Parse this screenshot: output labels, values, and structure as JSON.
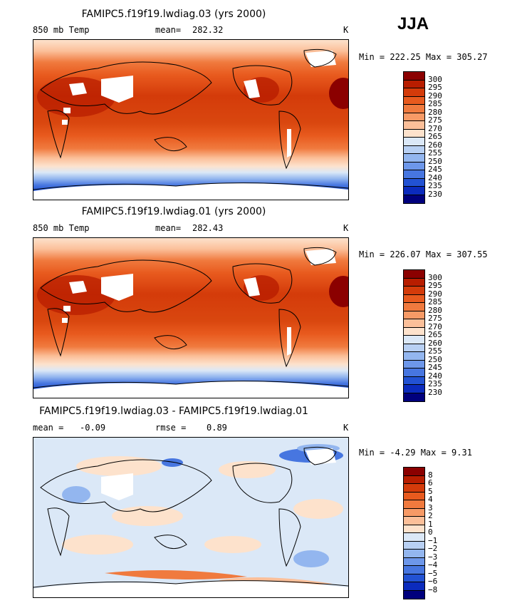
{
  "season": "JJA",
  "units": "K",
  "panels": [
    {
      "title": "FAMIPC5.f19f19.lwdiag.03 (yrs 2000)",
      "field_label": "850 mb Temp",
      "stat_label": "mean=",
      "stat_value": "282.32",
      "range": "Min = 222.25 Max = 305.27"
    },
    {
      "title": "FAMIPC5.f19f19.lwdiag.01 (yrs 2000)",
      "field_label": "850 mb Temp",
      "stat_label": "mean=",
      "stat_value": "282.43",
      "range": "Min = 226.07 Max = 307.55"
    },
    {
      "title": "FAMIPC5.f19f19.lwdiag.03 - FAMIPC5.f19f19.lwdiag.01",
      "mean_label": "mean =",
      "mean_value": "-0.09",
      "rmse_label": "rmse =",
      "rmse_value": "0.89",
      "range": "Min =  -4.29 Max =   9.31"
    }
  ],
  "colorbars": {
    "temperature": {
      "labels": [
        "300",
        "295",
        "290",
        "285",
        "280",
        "275",
        "270",
        "265",
        "260",
        "255",
        "250",
        "245",
        "240",
        "235",
        "230"
      ],
      "colors": [
        "#8b0000",
        "#b81d00",
        "#d43b0a",
        "#e85a1e",
        "#f07a3e",
        "#f79a66",
        "#fbbf99",
        "#fde2cc",
        "#dbe8f7",
        "#b8d0f3",
        "#93b6ef",
        "#6d97ea",
        "#4776e0",
        "#2252d3",
        "#0b2bbd",
        "#00007d"
      ]
    },
    "difference": {
      "labels": [
        "8",
        "6",
        "5",
        "4",
        "3",
        "2",
        "1",
        "0",
        "−1",
        "−2",
        "−3",
        "−4",
        "−5",
        "−6",
        "−8"
      ],
      "colors": [
        "#8b0000",
        "#b81d00",
        "#d43b0a",
        "#e85a1e",
        "#f07a3e",
        "#f79a66",
        "#fbbf99",
        "#fde2cc",
        "#dbe8f7",
        "#b8d0f3",
        "#93b6ef",
        "#6d97ea",
        "#4776e0",
        "#2252d3",
        "#0b2bbd",
        "#00007d"
      ]
    }
  }
}
